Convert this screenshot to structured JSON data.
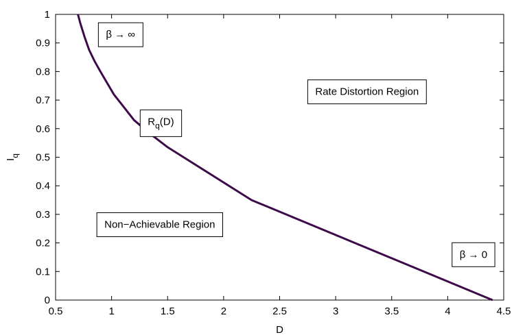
{
  "chart_data": {
    "type": "line",
    "xlabel": "D",
    "ylabel": "I",
    "ylabel_subscript": "q",
    "xlim": [
      0.5,
      4.5
    ],
    "ylim": [
      0,
      1
    ],
    "xticks": [
      "0.5",
      "1",
      "1.5",
      "2",
      "2.5",
      "3",
      "3.5",
      "4",
      "4.5"
    ],
    "yticks": [
      "0",
      "0.1",
      "0.2",
      "0.3",
      "0.4",
      "0.5",
      "0.6",
      "0.7",
      "0.8",
      "0.9",
      "1"
    ],
    "grid": false,
    "series": [
      {
        "color": "#3d0a4a",
        "points": [
          [
            0.7,
            1.0
          ],
          [
            0.72,
            0.97
          ],
          [
            0.76,
            0.92
          ],
          [
            0.8,
            0.875
          ],
          [
            0.85,
            0.835
          ],
          [
            0.9,
            0.8
          ],
          [
            0.96,
            0.76
          ],
          [
            1.02,
            0.72
          ],
          [
            1.1,
            0.68
          ],
          [
            1.2,
            0.63
          ],
          [
            1.35,
            0.58
          ],
          [
            1.5,
            0.535
          ],
          [
            2.25,
            0.35
          ],
          [
            4.4,
            0.0
          ]
        ]
      }
    ],
    "annotations": [
      {
        "id": "beta-infinity",
        "text": "β → ∞",
        "x": 1.08,
        "y": 0.93
      },
      {
        "id": "rq-curve",
        "text": "R",
        "subscript": "q",
        "suffix": "(D)",
        "x": 1.44,
        "y": 0.625
      },
      {
        "id": "rate-distortion-region",
        "text": "Rate Distortion Region",
        "x": 3.28,
        "y": 0.73
      },
      {
        "id": "non-achievable-region",
        "text": "Non−Achievable Region",
        "x": 1.43,
        "y": 0.265
      },
      {
        "id": "beta-zero",
        "text": "β → 0",
        "x": 4.23,
        "y": 0.16
      }
    ]
  }
}
